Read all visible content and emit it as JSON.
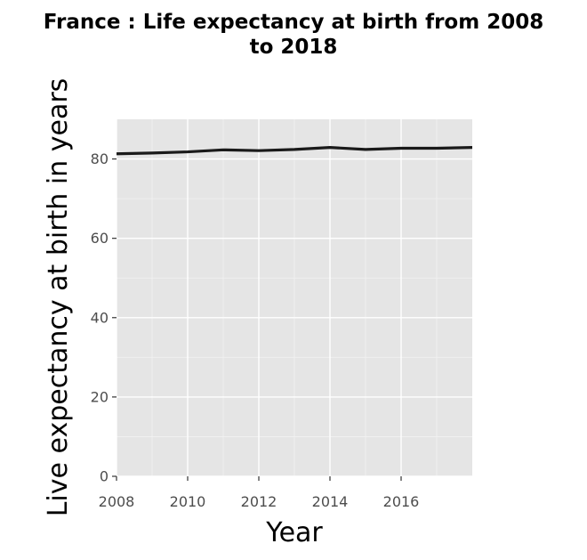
{
  "chart_data": {
    "type": "line",
    "title_lines": [
      "France : Life expectancy at birth from 2008",
      "to 2018"
    ],
    "xlabel": "Year",
    "ylabel": "Live expectancy at birth in years",
    "x": [
      2008,
      2009,
      2010,
      2011,
      2012,
      2013,
      2014,
      2015,
      2016,
      2017,
      2018
    ],
    "series": [
      {
        "values": [
          81.3,
          81.5,
          81.8,
          82.3,
          82.1,
          82.4,
          82.9,
          82.4,
          82.7,
          82.7,
          82.9
        ]
      }
    ],
    "xlim": [
      2008,
      2018
    ],
    "ylim": [
      0,
      90
    ],
    "xticks": [
      2008,
      2010,
      2012,
      2014,
      2016
    ],
    "yticks": [
      0,
      20,
      40,
      60,
      80
    ],
    "grid": true,
    "line_color": "#1a1a1a",
    "panel_color": "#e5e5e5"
  }
}
